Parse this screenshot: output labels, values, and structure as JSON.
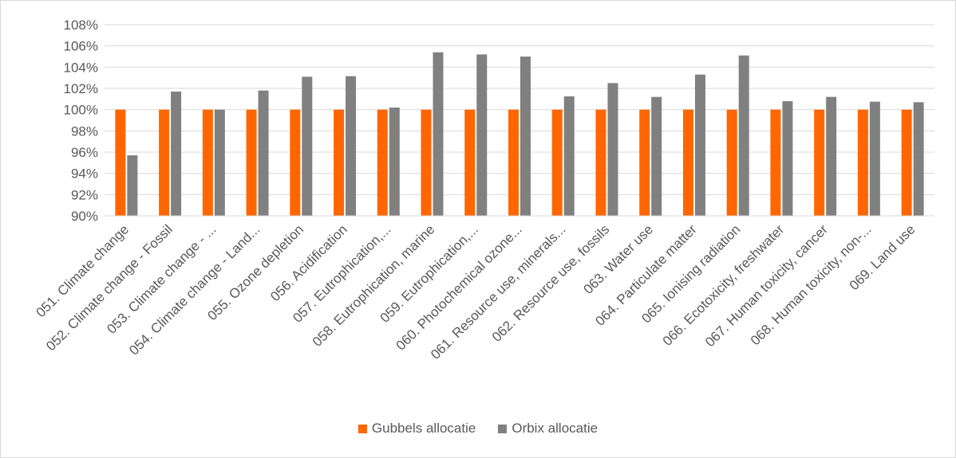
{
  "chart_data": {
    "type": "bar",
    "categories": [
      "051. Climate change",
      "052. Climate change - Fossil",
      "053. Climate change - ...",
      "054. Climate change - Land...",
      "055. Ozone depletion",
      "056. Acidification",
      "057. Eutrophication,...",
      "058. Eutrophication, marine",
      "059. Eutrophication,...",
      "060. Photochemical ozone...",
      "061. Resource use, minerals...",
      "062. Resource use, fossils",
      "063. Water use",
      "064. Particulate matter",
      "065. Ionising radiation",
      "066. Ecotoxicity, freshwater",
      "067. Human toxicity, cancer",
      "068. Human toxicity, non-...",
      "069. Land use"
    ],
    "series": [
      {
        "name": "Gubbels allocatie",
        "color": "#ff6600",
        "values": [
          100,
          100,
          100,
          100,
          100,
          100,
          100,
          100,
          100,
          100,
          100,
          100,
          100,
          100,
          100,
          100,
          100,
          100,
          100
        ]
      },
      {
        "name": "Orbix allocatie",
        "color": "#808080",
        "values": [
          95.7,
          101.7,
          100.0,
          101.8,
          103.1,
          103.15,
          100.2,
          105.4,
          105.2,
          105.0,
          101.25,
          102.5,
          101.2,
          103.3,
          105.1,
          100.8,
          101.2,
          100.75,
          100.7
        ]
      }
    ],
    "ylim": [
      90,
      108
    ],
    "yticks": [
      "90%",
      "92%",
      "94%",
      "96%",
      "98%",
      "100%",
      "102%",
      "104%",
      "106%",
      "108%"
    ],
    "ytick_values": [
      90,
      92,
      94,
      96,
      98,
      100,
      102,
      104,
      106,
      108
    ],
    "grid": true,
    "legend": "bottom",
    "title": "",
    "xlabel": "",
    "ylabel": ""
  }
}
